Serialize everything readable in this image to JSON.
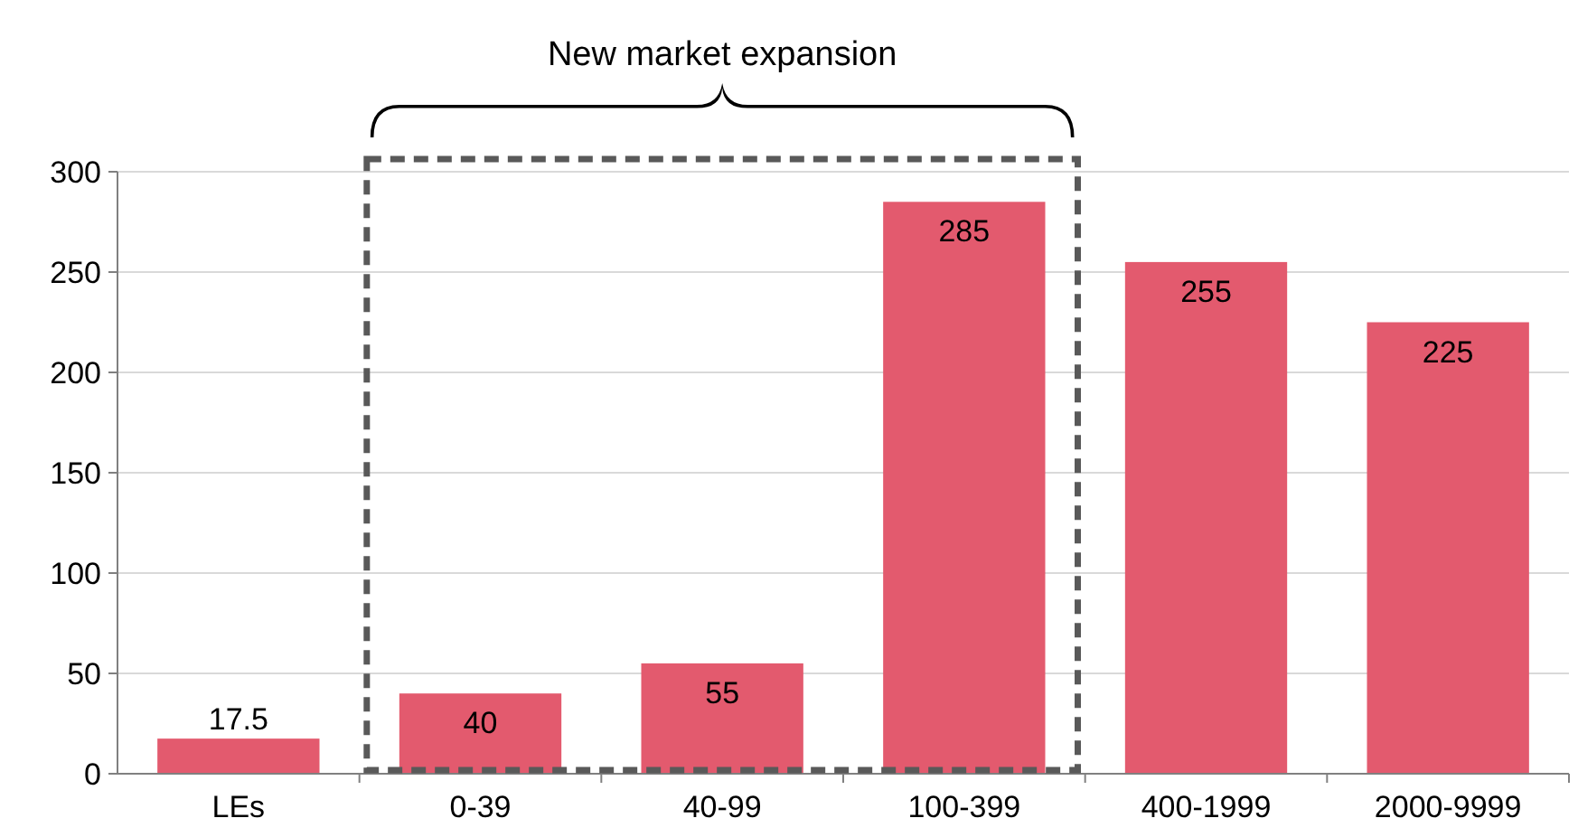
{
  "chart_data": {
    "type": "bar",
    "categories": [
      "LEs",
      "0-39",
      "40-99",
      "100-399",
      "400-1999",
      "2000-9999"
    ],
    "values": [
      17.5,
      40,
      55,
      285,
      255,
      225
    ],
    "color": "#e35a6e",
    "ylim": [
      0,
      300
    ],
    "yticks": [
      0,
      50,
      100,
      150,
      200,
      250,
      300
    ],
    "grid": "y",
    "data_labels": true,
    "annotations": [
      "New market expansion"
    ]
  }
}
